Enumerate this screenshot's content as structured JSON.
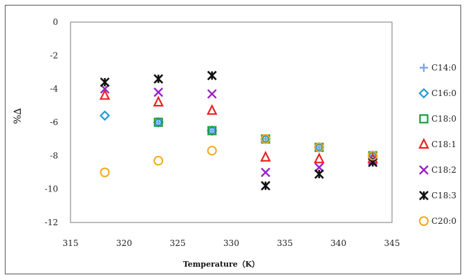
{
  "chart_data": {
    "type": "scatter",
    "xlabel": "Temperature（K）",
    "ylabel": "%∆",
    "xlim": [
      315,
      345
    ],
    "ylim": [
      -12,
      0
    ],
    "xticks": [
      315,
      320,
      325,
      330,
      335,
      340,
      345
    ],
    "yticks": [
      0,
      -2,
      -4,
      -6,
      -8,
      -10,
      -12
    ],
    "legend_position": "right",
    "grid": false,
    "series": [
      {
        "name": "C14:0",
        "marker": "plus",
        "color": "#7ea6e0",
        "points": [
          {
            "x": 323.2,
            "y": -6.0
          },
          {
            "x": 328.2,
            "y": -6.5
          },
          {
            "x": 333.2,
            "y": -7.0
          },
          {
            "x": 338.2,
            "y": -7.5
          },
          {
            "x": 343.2,
            "y": -8.0
          }
        ]
      },
      {
        "name": "C16:0",
        "marker": "diamond",
        "color": "#1f9bd7",
        "points": [
          {
            "x": 318.2,
            "y": -5.6
          },
          {
            "x": 323.2,
            "y": -6.0
          },
          {
            "x": 328.2,
            "y": -6.5
          },
          {
            "x": 333.2,
            "y": -7.0
          },
          {
            "x": 338.2,
            "y": -7.5
          },
          {
            "x": 343.2,
            "y": -8.0
          }
        ]
      },
      {
        "name": "C18:0",
        "marker": "square",
        "color": "#1a9a3a",
        "points": [
          {
            "x": 323.2,
            "y": -6.0
          },
          {
            "x": 328.2,
            "y": -6.5
          },
          {
            "x": 333.2,
            "y": -7.0
          },
          {
            "x": 338.2,
            "y": -7.5
          },
          {
            "x": 343.2,
            "y": -8.0
          }
        ]
      },
      {
        "name": "C18:1",
        "marker": "triangle",
        "color": "#e8231f",
        "points": [
          {
            "x": 318.2,
            "y": -4.4
          },
          {
            "x": 323.2,
            "y": -4.8
          },
          {
            "x": 328.2,
            "y": -5.3
          },
          {
            "x": 333.2,
            "y": -8.1
          },
          {
            "x": 338.2,
            "y": -8.2
          },
          {
            "x": 343.2,
            "y": -8.2
          }
        ]
      },
      {
        "name": "C18:2",
        "marker": "x",
        "color": "#9b1ec8",
        "points": [
          {
            "x": 318.2,
            "y": -4.0
          },
          {
            "x": 323.2,
            "y": -4.2
          },
          {
            "x": 328.2,
            "y": -4.3
          },
          {
            "x": 333.2,
            "y": -9.0
          },
          {
            "x": 338.2,
            "y": -8.7
          },
          {
            "x": 343.2,
            "y": -8.3
          }
        ]
      },
      {
        "name": "C18:3",
        "marker": "asterisk",
        "color": "#111111",
        "points": [
          {
            "x": 318.2,
            "y": -3.6
          },
          {
            "x": 323.2,
            "y": -3.4
          },
          {
            "x": 328.2,
            "y": -3.2
          },
          {
            "x": 333.2,
            "y": -9.8
          },
          {
            "x": 338.2,
            "y": -9.1
          },
          {
            "x": 343.2,
            "y": -8.4
          }
        ]
      },
      {
        "name": "C20:0",
        "marker": "circle",
        "color": "#f2a81d",
        "points": [
          {
            "x": 318.2,
            "y": -9.0
          },
          {
            "x": 323.2,
            "y": -8.3
          },
          {
            "x": 328.2,
            "y": -7.7
          },
          {
            "x": 333.2,
            "y": -7.0
          },
          {
            "x": 338.2,
            "y": -7.5
          },
          {
            "x": 343.2,
            "y": -8.0
          }
        ]
      }
    ]
  }
}
